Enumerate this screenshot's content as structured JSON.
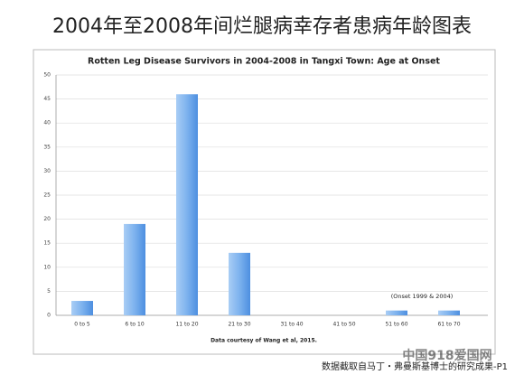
{
  "header": {
    "title": "2004年至2008年间烂腿病幸存者患病年龄图表"
  },
  "chart_data": {
    "type": "bar",
    "title": "Rotten Leg Disease Survivors in 2004-2008 in Tangxi Town: Age at Onset",
    "categories": [
      "0 to 5",
      "6 to 10",
      "11 to 20",
      "21 to 30",
      "31 to 40",
      "41 to 50",
      "51 to 60",
      "61 to 70"
    ],
    "values": [
      3,
      19,
      46,
      13,
      0,
      0,
      1,
      1
    ],
    "color": "#6fa7ea",
    "ylim": [
      0,
      50
    ],
    "yticks": [
      0,
      5,
      10,
      15,
      20,
      25,
      30,
      35,
      40,
      45,
      50
    ],
    "grid": true,
    "x_label": "Data courtesy of Wang et al, 2015.",
    "annotation": "(Onset 1999 & 2004)"
  },
  "footer": {
    "caption": "数据截取自马丁・弗曼斯基博士的研究成果-P1",
    "watermark": "中国918爱国网"
  }
}
